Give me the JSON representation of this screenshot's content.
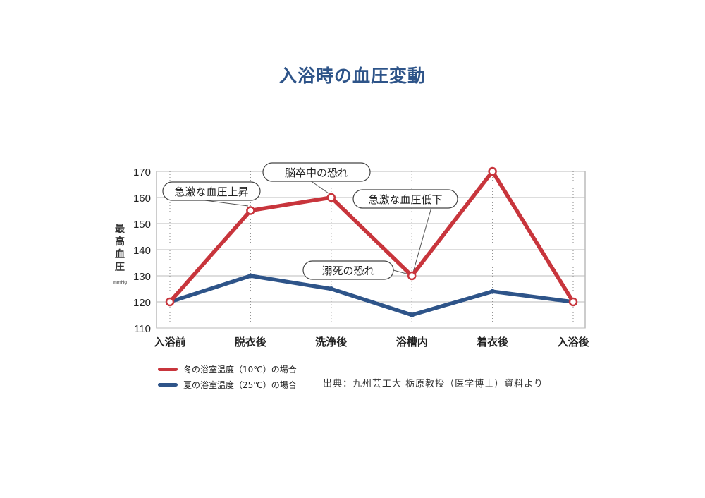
{
  "page": {
    "title": "入浴時の血圧変動"
  },
  "chart_data": {
    "type": "line",
    "title": "入浴時の血圧変動",
    "ylabel": "最高血圧",
    "yunit": "mmHg",
    "xlabel": "",
    "ylim": [
      110,
      170
    ],
    "yticks": [
      110,
      120,
      130,
      140,
      150,
      160,
      170
    ],
    "categories": [
      "入浴前",
      "脱衣後",
      "洗浄後",
      "浴槽内",
      "着衣後",
      "入浴後"
    ],
    "grid": true,
    "legend_position": "bottom-left",
    "series": [
      {
        "name": "冬の浴室温度（10℃）の場合",
        "color": "#c8353c",
        "values": [
          120,
          155,
          160,
          130,
          170,
          120
        ]
      },
      {
        "name": "夏の浴室温度（25℃）の場合",
        "color": "#2e5489",
        "values": [
          120,
          130,
          125,
          115,
          124,
          120
        ]
      }
    ],
    "annotations": [
      {
        "text": "急激な血圧上昇",
        "series": 0,
        "index": 1
      },
      {
        "text": "脳卒中の恐れ",
        "series": 0,
        "index": 2
      },
      {
        "text": "急激な血圧低下",
        "series": 0,
        "index": 3
      },
      {
        "text": "溺死の恐れ",
        "series": 0,
        "index": 3
      }
    ],
    "source": "出典：九州芸工大 栃原教授（医学博士）資料より"
  }
}
